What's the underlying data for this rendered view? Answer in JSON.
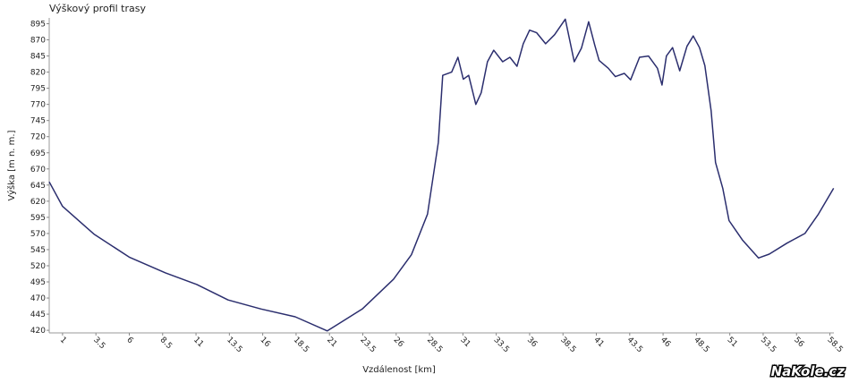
{
  "chart_data": {
    "type": "line",
    "title": "Výškový profil trasy",
    "x_label": "Vzdálenost [km]",
    "y_label": "Výška [m n. m.]",
    "watermark": "NaKole.cz",
    "x": [
      0,
      1,
      3.35,
      6.03,
      8.71,
      11.06,
      13.4,
      15.88,
      18.43,
      20.84,
      23.46,
      25.8,
      27.14,
      28.35,
      29.16,
      29.49,
      30.16,
      30.63,
      31.03,
      31.43,
      31.97,
      32.37,
      32.84,
      33.31,
      33.98,
      34.52,
      35.05,
      35.52,
      36.0,
      36.53,
      37.2,
      37.87,
      38.67,
      39.34,
      39.88,
      40.42,
      40.88,
      41.21,
      41.9,
      42.43,
      43.1,
      43.57,
      44.24,
      44.91,
      45.58,
      45.92,
      46.25,
      46.71,
      47.25,
      47.79,
      48.26,
      48.73,
      49.13,
      49.6,
      49.93,
      50.47,
      50.94,
      51.94,
      53.15,
      53.95,
      55.29,
      56.63,
      57.64,
      58.78
    ],
    "series": [
      {
        "name": "Výška",
        "color": "#2b2e6e",
        "values": [
          650,
          612,
          569,
          533,
          509,
          491,
          467,
          453,
          441,
          419,
          453,
          499,
          537,
          600,
          711,
          815,
          820,
          843,
          809,
          815,
          770,
          788,
          836,
          854,
          836,
          843,
          829,
          864,
          885,
          881,
          864,
          878,
          902,
          836,
          857,
          898,
          862,
          838,
          826,
          813,
          818,
          808,
          843,
          845,
          826,
          800,
          845,
          858,
          822,
          860,
          876,
          858,
          830,
          760,
          680,
          640,
          590,
          560,
          532,
          538,
          555,
          570,
          600,
          640
        ]
      }
    ],
    "xlim": [
      0,
      58.8
    ],
    "ylim": [
      416,
      904
    ],
    "xticks": [
      1,
      3.5,
      6,
      8.5,
      11,
      13.5,
      16,
      18.5,
      21,
      23.5,
      26,
      28.5,
      31,
      33.5,
      36,
      38.5,
      41,
      43.5,
      46,
      48.5,
      51,
      53.5,
      56,
      58.5
    ],
    "yticks": [
      420,
      445,
      470,
      495,
      520,
      545,
      570,
      595,
      620,
      645,
      670,
      695,
      720,
      745,
      770,
      795,
      820,
      845,
      870,
      895
    ],
    "grid": false
  }
}
